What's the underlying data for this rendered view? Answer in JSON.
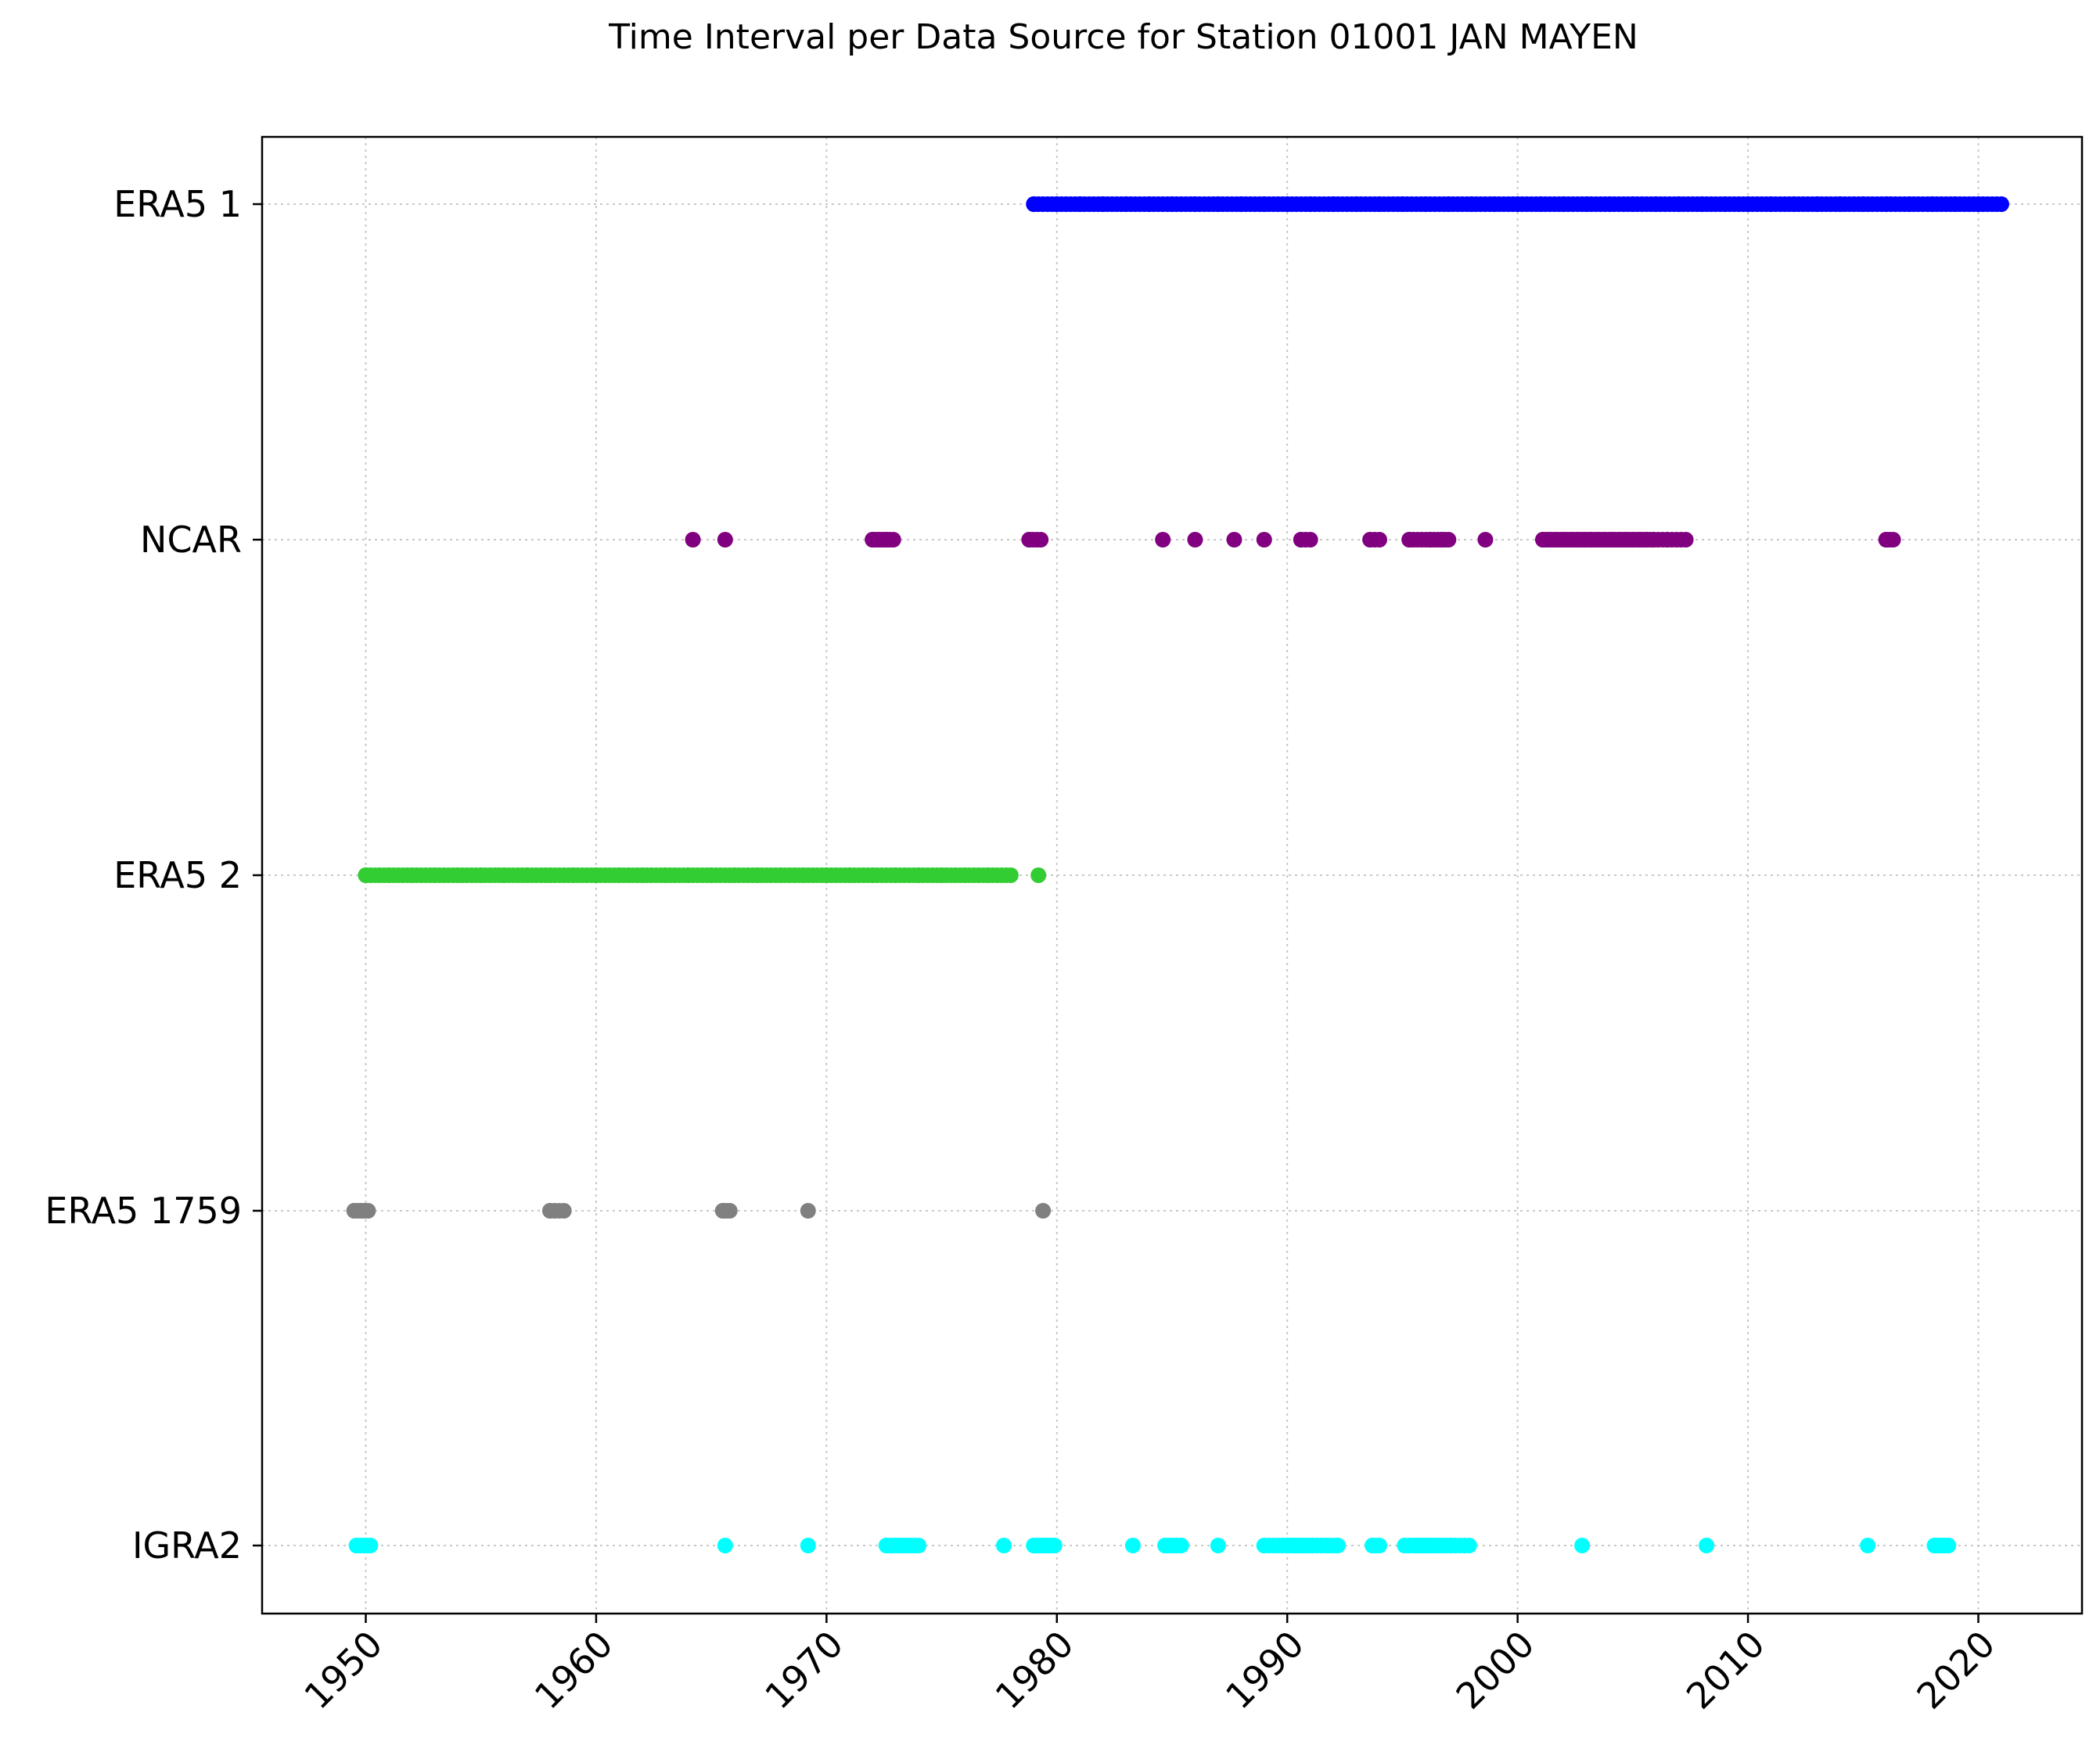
{
  "chart_data": {
    "type": "scatter",
    "title": "Time Interval per Data Source for Station 01001 JAN MAYEN",
    "xlabel": "",
    "ylabel": "",
    "xlim": [
      1945.5,
      2024.5
    ],
    "x_ticks": [
      "1950",
      "1960",
      "1970",
      "1980",
      "1990",
      "2000",
      "2010",
      "2020"
    ],
    "x_tick_values": [
      1950,
      1960,
      1970,
      1980,
      1990,
      2000,
      2010,
      2020
    ],
    "categories": [
      "ERA5 1",
      "NCAR",
      "ERA5 2",
      "ERA5 1759",
      "IGRA2"
    ],
    "grid": true,
    "series": [
      {
        "category": "ERA5 1",
        "color": "#0000ff",
        "x": [
          1979.0,
          1980.0,
          1981.0,
          1982.0,
          1983.0,
          1984.0,
          1985.0,
          1986.0,
          1987.0,
          1988.0,
          1989.0,
          1990.0,
          1991.0,
          1992.0,
          1993.0,
          1994.0,
          1995.0,
          1996.0,
          1997.0,
          1998.0,
          1999.0,
          2000.0,
          2001.0,
          2002.0,
          2003.0,
          2004.0,
          2005.0,
          2006.0,
          2007.0,
          2008.0,
          2009.0,
          2010.0,
          2011.0,
          2012.0,
          2013.0,
          2014.0,
          2015.0,
          2016.0,
          2017.0,
          2018.0,
          2019.0,
          2020.0,
          2021.0
        ]
      },
      {
        "category": "NCAR",
        "color": "#800080",
        "x": [
          1964.2,
          1965.6,
          1972.0,
          1972.3,
          1972.6,
          1972.9,
          1978.8,
          1979.3,
          1984.6,
          1986.0,
          1987.7,
          1989.0,
          1990.6,
          1991.0,
          1993.6,
          1994.0,
          1995.3,
          1996.2,
          1996.7,
          1997.0,
          1998.6,
          2001.1,
          2001.4,
          2001.7,
          2002.0,
          2002.3,
          2002.6,
          2002.9,
          2003.2,
          2003.5,
          2003.8,
          2004.1,
          2004.4,
          2004.7,
          2005.0,
          2005.3,
          2005.6,
          2005.9,
          2006.5,
          2007.3,
          2016.0,
          2016.3
        ]
      },
      {
        "category": "ERA5 2",
        "color": "#32cd32",
        "x": [
          1950.0,
          1951.0,
          1952.0,
          1953.0,
          1954.0,
          1955.0,
          1956.0,
          1957.0,
          1958.0,
          1959.0,
          1960.0,
          1961.0,
          1962.0,
          1963.0,
          1964.0,
          1965.0,
          1966.0,
          1967.0,
          1968.0,
          1969.0,
          1970.0,
          1971.0,
          1972.0,
          1973.0,
          1974.0,
          1975.0,
          1976.0,
          1977.0,
          1978.0,
          1979.2
        ]
      },
      {
        "category": "ERA5 1759",
        "color": "#808080",
        "x": [
          1949.5,
          1949.8,
          1950.1,
          1958.0,
          1958.6,
          1965.5,
          1965.8,
          1969.2,
          1979.4
        ]
      },
      {
        "category": "IGRA2",
        "color": "#00ffff",
        "x": [
          1949.6,
          1949.9,
          1950.2,
          1965.6,
          1969.2,
          1972.6,
          1972.9,
          1973.1,
          1974.0,
          1977.7,
          1979.0,
          1979.3,
          1979.6,
          1979.9,
          1983.3,
          1984.7,
          1985.4,
          1987.0,
          1989.0,
          1990.0,
          1990.3,
          1990.6,
          1990.9,
          1991.1,
          1991.7,
          1992.2,
          1993.7,
          1994.0,
          1995.1,
          1995.5,
          1995.8,
          1996.1,
          1996.4,
          1997.1,
          1997.9,
          2002.8,
          2008.2,
          2015.2,
          2018.1,
          2018.4,
          2018.7
        ]
      }
    ]
  }
}
